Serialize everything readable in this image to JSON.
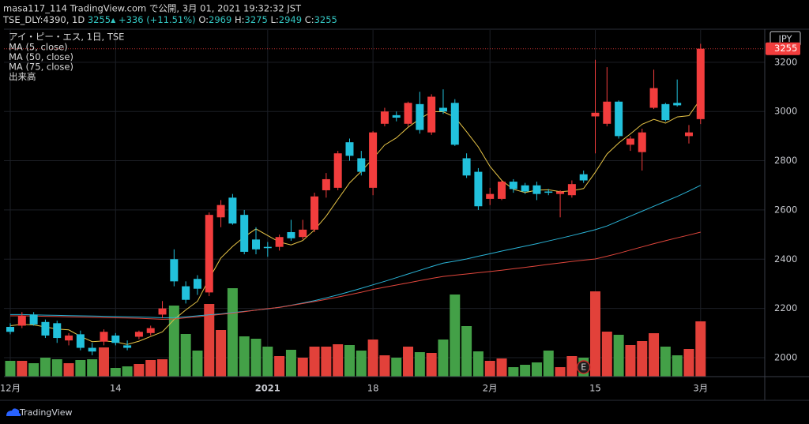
{
  "header": {
    "line1": "masa117_114 TradingView.com で公開, 3月 01, 2021 19:32:32 JST",
    "symbol": "TSE_DLY:4390, 1D",
    "last": "3255",
    "arrow": "▲",
    "change": "+336 (+11.51%)",
    "ohlc": [
      "O:",
      "2969",
      "H:",
      "3275",
      "L:",
      "2949",
      "C:",
      "3255"
    ]
  },
  "chart_data": {
    "type": "candlestick",
    "title": "アイ・ピー・エス, 1日, TSE",
    "volume_name": "出来高",
    "currency": "JPY",
    "marker": "E",
    "categories": [
      "12月",
      null,
      null,
      null,
      null,
      null,
      null,
      null,
      null,
      "14",
      null,
      null,
      null,
      null,
      null,
      null,
      null,
      null,
      null,
      null,
      null,
      null,
      "2021",
      null,
      null,
      null,
      null,
      null,
      null,
      null,
      null,
      "18",
      null,
      null,
      null,
      null,
      null,
      null,
      null,
      null,
      null,
      "2月",
      null,
      null,
      null,
      null,
      null,
      null,
      null,
      null,
      "15",
      null,
      null,
      null,
      null,
      null,
      null,
      null,
      null,
      "3月"
    ],
    "open": [
      2125,
      2130,
      2175,
      2145,
      2140,
      2070,
      2095,
      2040,
      2065,
      2090,
      2050,
      2085,
      2100,
      2175,
      2400,
      2290,
      2320,
      2265,
      2570,
      2650,
      2580,
      2480,
      2450,
      2450,
      2510,
      2490,
      2520,
      2680,
      2690,
      2875,
      2810,
      2690,
      2950,
      2985,
      2950,
      3030,
      2915,
      3015,
      3035,
      2810,
      2755,
      2645,
      2645,
      2715,
      2700,
      2700,
      2675,
      2665,
      2660,
      2745,
      2980,
      2950,
      3040,
      2865,
      2835,
      3015,
      3030,
      3035,
      2900,
      2969
    ],
    "high": [
      2140,
      2185,
      2185,
      2155,
      2150,
      2100,
      2110,
      2060,
      2115,
      2100,
      2070,
      2110,
      2130,
      2230,
      2440,
      2310,
      2335,
      2590,
      2640,
      2665,
      2600,
      2530,
      2470,
      2500,
      2560,
      2560,
      2670,
      2750,
      2840,
      2890,
      2840,
      2920,
      3015,
      3000,
      3040,
      3080,
      3070,
      3090,
      3050,
      2830,
      2770,
      2690,
      2720,
      2725,
      2710,
      2715,
      2685,
      2680,
      2720,
      2760,
      3210,
      3180,
      3045,
      2900,
      2930,
      3170,
      3035,
      3130,
      2945,
      3275
    ],
    "low": [
      2095,
      2120,
      2130,
      2080,
      2060,
      2050,
      2030,
      2010,
      2050,
      2050,
      2030,
      2075,
      2090,
      2160,
      2290,
      2220,
      2255,
      2250,
      2530,
      2540,
      2420,
      2420,
      2410,
      2435,
      2475,
      2480,
      2510,
      2650,
      2680,
      2800,
      2740,
      2660,
      2940,
      2960,
      2940,
      2910,
      2905,
      2990,
      2860,
      2730,
      2600,
      2620,
      2640,
      2670,
      2665,
      2640,
      2660,
      2570,
      2650,
      2710,
      2830,
      2940,
      2890,
      2840,
      2760,
      3010,
      2960,
      3020,
      2870,
      2949
    ],
    "close": [
      2105,
      2170,
      2135,
      2090,
      2080,
      2090,
      2040,
      2025,
      2105,
      2060,
      2040,
      2105,
      2120,
      2200,
      2310,
      2235,
      2280,
      2580,
      2620,
      2545,
      2430,
      2440,
      2445,
      2490,
      2485,
      2520,
      2655,
      2725,
      2830,
      2820,
      2755,
      2915,
      3000,
      2975,
      3035,
      2925,
      3060,
      3000,
      2865,
      2740,
      2615,
      2665,
      2715,
      2685,
      2675,
      2665,
      2670,
      2675,
      2705,
      2720,
      2995,
      3040,
      2900,
      2890,
      2915,
      3095,
      2965,
      3025,
      2915,
      3255
    ],
    "volume": [
      20,
      20,
      17,
      24,
      22,
      17,
      21,
      22,
      37,
      11,
      13,
      16,
      21,
      22,
      90,
      54,
      33,
      92,
      59,
      112,
      51,
      48,
      38,
      26,
      34,
      24,
      38,
      38,
      41,
      40,
      33,
      47,
      27,
      24,
      38,
      31,
      30,
      47,
      104,
      64,
      32,
      20,
      23,
      12,
      15,
      18,
      33,
      12,
      26,
      24,
      108,
      57,
      53,
      40,
      45,
      55,
      38,
      27,
      35,
      70
    ],
    "series": [
      {
        "name": "MA (5, close)",
        "color": "#e8c547",
        "values": [
          2130,
          2135,
          2133,
          2125,
          2116,
          2113,
          2087,
          2065,
          2068,
          2064,
          2054,
          2067,
          2086,
          2105,
          2155,
          2194,
          2229,
          2321,
          2405,
          2452,
          2491,
          2523,
          2496,
          2470,
          2458,
          2476,
          2519,
          2575,
          2643,
          2710,
          2757,
          2809,
          2864,
          2893,
          2936,
          2970,
          2999,
          2999,
          2977,
          2918,
          2856,
          2777,
          2720,
          2684,
          2671,
          2681,
          2682,
          2674,
          2678,
          2687,
          2753,
          2827,
          2872,
          2909,
          2948,
          2968,
          2953,
          2978,
          2983,
          3051
        ]
      },
      {
        "name": "MA (50, close)",
        "color": "#2ab3d6",
        "values": [
          2175,
          2175,
          2174,
          2173,
          2172,
          2171,
          2170,
          2169,
          2168,
          2167,
          2166,
          2165,
          2164,
          2162,
          2163,
          2166,
          2170,
          2174,
          2178,
          2183,
          2188,
          2193,
          2198,
          2205,
          2213,
          2222,
          2232,
          2243,
          2255,
          2268,
          2282,
          2296,
          2310,
          2325,
          2340,
          2355,
          2370,
          2384,
          2392,
          2401,
          2412,
          2422,
          2433,
          2443,
          2453,
          2463,
          2474,
          2485,
          2496,
          2508,
          2520,
          2535,
          2555,
          2575,
          2595,
          2615,
          2635,
          2655,
          2677,
          2700
        ]
      },
      {
        "name": "MA (75, close)",
        "color": "#e0463c",
        "values": [
          2170,
          2170,
          2169,
          2168,
          2167,
          2166,
          2165,
          2164,
          2163,
          2162,
          2161,
          2160,
          2158,
          2156,
          2157,
          2162,
          2166,
          2171,
          2176,
          2181,
          2187,
          2193,
          2199,
          2204,
          2212,
          2220,
          2228,
          2237,
          2246,
          2256,
          2266,
          2277,
          2286,
          2295,
          2304,
          2313,
          2322,
          2330,
          2335,
          2340,
          2345,
          2350,
          2355,
          2361,
          2367,
          2373,
          2379,
          2385,
          2391,
          2396,
          2401,
          2412,
          2424,
          2437,
          2450,
          2463,
          2475,
          2487,
          2498,
          2510
        ]
      }
    ],
    "last_price": 3255,
    "ylim": [
      1923,
      3331
    ],
    "yticks": [
      2000,
      2200,
      2400,
      2600,
      2800,
      3000,
      3200
    ],
    "volume_lim": [
      0,
      439
    ],
    "up_color": "#f23d3d",
    "down_color": "#22c1dc",
    "volume_up_color": "#e2413a",
    "volume_down_color": "#43a047",
    "grid": true
  },
  "footer": {
    "brand": "TradingView"
  }
}
